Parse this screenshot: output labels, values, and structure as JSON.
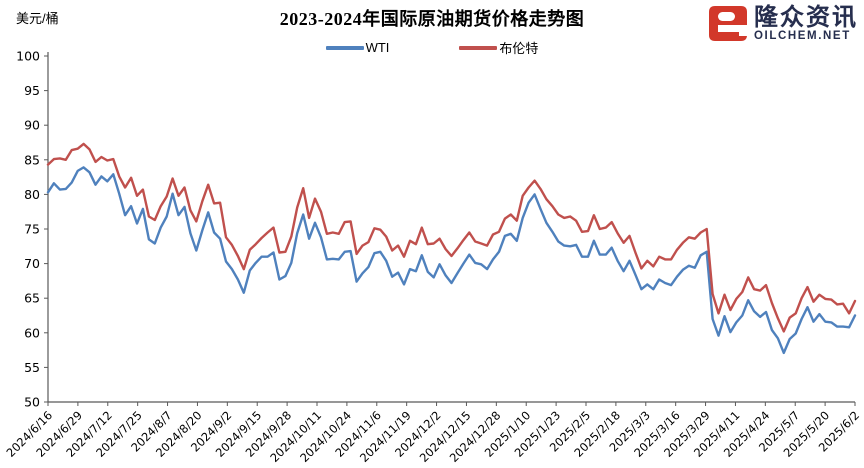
{
  "header": {
    "unit_label": "美元/桶",
    "title": "2023-2024年国际原油期货价格走势图"
  },
  "legend": [
    {
      "label": "WTI",
      "color": "#4F81BD"
    },
    {
      "label": "布伦特",
      "color": "#C0504D"
    }
  ],
  "logo": {
    "brand_cn": "隆众资讯",
    "brand_en": "OILCHEM.NET",
    "icon": "oilchem-e-icon",
    "icon_color": "#D2382A",
    "text_color": "#262E4E"
  },
  "chart_data": {
    "type": "line",
    "title": "2023-2024年国际原油期货价格走势图",
    "xlabel": "",
    "ylabel": "美元/桶",
    "ylim": [
      50,
      100
    ],
    "grid": false,
    "legend_position": "top",
    "axis_color": "#595959",
    "y_ticks": [
      100,
      95,
      90,
      85,
      80,
      75,
      70,
      65,
      60,
      55,
      50
    ],
    "x_tick_labels": [
      "2024/6/16",
      "2024/6/29",
      "2024/7/12",
      "2024/7/25",
      "2024/8/7",
      "2024/8/20",
      "2024/9/2",
      "2024/9/15",
      "2024/9/28",
      "2024/10/11",
      "2024/10/24",
      "2024/11/6",
      "2024/11/19",
      "2024/12/2",
      "2024/12/15",
      "2024/12/28",
      "2025/1/10",
      "2025/1/23",
      "2025/2/5",
      "2025/2/18",
      "2025/3/3",
      "2025/3/16",
      "2025/3/29",
      "2025/4/11",
      "2025/4/24",
      "2025/5/7",
      "2025/5/20",
      "2025/6/2"
    ],
    "series": [
      {
        "name": "WTI",
        "color": "#4F81BD",
        "values": [
          80.3,
          81.6,
          80.7,
          80.8,
          81.7,
          83.4,
          83.9,
          83.2,
          81.4,
          82.6,
          81.9,
          82.9,
          80.1,
          77.0,
          78.3,
          75.8,
          77.9,
          73.5,
          72.9,
          75.2,
          76.8,
          80.1,
          77.0,
          78.2,
          74.4,
          71.9,
          74.8,
          77.4,
          74.5,
          73.6,
          70.3,
          69.2,
          67.7,
          65.8,
          69.0,
          70.1,
          71.0,
          71.0,
          71.6,
          67.7,
          68.2,
          70.1,
          74.4,
          77.1,
          73.6,
          75.9,
          73.8,
          70.6,
          70.7,
          70.6,
          71.7,
          71.8,
          67.4,
          68.6,
          69.5,
          71.5,
          71.7,
          70.4,
          68.1,
          68.7,
          67.0,
          69.2,
          68.9,
          71.2,
          68.8,
          68.0,
          69.9,
          68.3,
          67.2,
          68.6,
          70.0,
          71.3,
          70.1,
          69.9,
          69.2,
          70.6,
          71.7,
          74.0,
          74.3,
          73.3,
          76.6,
          78.8,
          80.0,
          77.9,
          75.9,
          74.6,
          73.2,
          72.6,
          72.5,
          72.7,
          71.0,
          71.0,
          73.3,
          71.3,
          71.3,
          72.3,
          70.4,
          68.9,
          70.4,
          68.4,
          66.3,
          67.0,
          66.3,
          67.7,
          67.2,
          66.9,
          68.1,
          69.1,
          69.7,
          69.4,
          71.2,
          71.7,
          62.0,
          59.6,
          62.4,
          60.1,
          61.5,
          62.5,
          64.7,
          63.1,
          62.3,
          63.0,
          60.4,
          59.2,
          57.1,
          59.1,
          59.9,
          62.0,
          63.7,
          61.6,
          62.7,
          61.6,
          61.5,
          60.9,
          60.9,
          60.8,
          62.5
        ]
      },
      {
        "name": "布伦特",
        "color": "#C0504D",
        "values": [
          84.3,
          85.1,
          85.2,
          85.0,
          86.4,
          86.6,
          87.3,
          86.5,
          84.7,
          85.4,
          84.9,
          85.1,
          82.6,
          81.0,
          82.4,
          79.8,
          80.7,
          76.8,
          76.3,
          78.3,
          79.7,
          82.3,
          79.8,
          81.0,
          77.7,
          76.1,
          79.0,
          81.4,
          78.7,
          78.8,
          73.8,
          72.7,
          71.1,
          69.2,
          72.0,
          72.8,
          73.7,
          74.5,
          75.2,
          71.6,
          71.7,
          73.9,
          78.1,
          80.9,
          76.6,
          79.4,
          77.5,
          74.3,
          74.5,
          74.3,
          76.0,
          76.1,
          71.4,
          72.6,
          73.1,
          75.1,
          74.9,
          73.9,
          71.9,
          72.6,
          71.0,
          73.3,
          72.8,
          75.2,
          72.8,
          72.9,
          73.6,
          72.1,
          71.1,
          72.2,
          73.4,
          74.5,
          73.2,
          72.9,
          72.6,
          74.2,
          74.6,
          76.5,
          77.1,
          76.2,
          79.8,
          81.0,
          82.0,
          80.8,
          79.3,
          78.3,
          77.1,
          76.6,
          76.8,
          76.2,
          74.6,
          74.7,
          77.0,
          75.0,
          75.2,
          76.0,
          74.4,
          73.0,
          74.0,
          71.6,
          69.3,
          70.4,
          69.6,
          71.0,
          70.6,
          70.6,
          72.0,
          73.0,
          73.8,
          73.6,
          74.5,
          75.0,
          65.6,
          62.8,
          65.5,
          63.3,
          64.9,
          65.9,
          68.0,
          66.3,
          66.1,
          66.9,
          64.3,
          62.1,
          60.2,
          62.2,
          62.8,
          65.0,
          66.6,
          64.5,
          65.5,
          64.9,
          64.8,
          64.1,
          64.2,
          62.8,
          64.6
        ]
      }
    ]
  }
}
